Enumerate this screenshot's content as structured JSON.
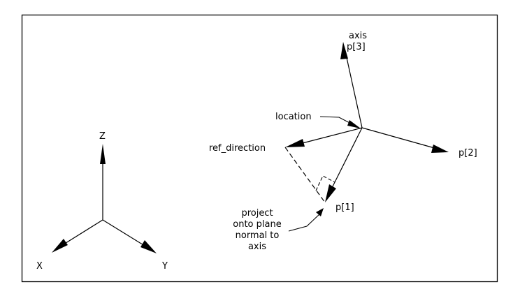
{
  "colors": {
    "ink": "#000000",
    "background": "#ffffff"
  },
  "global_axes": {
    "z_label": "Z",
    "x_label": "X",
    "y_label": "Y"
  },
  "placement": {
    "axis_label": "axis",
    "p3_label": "p[3]",
    "location_label": "location",
    "ref_direction_label": "ref_direction",
    "p2_label": "p[2]",
    "p1_label": "p[1]",
    "note_lines": [
      "project",
      "onto plane",
      "normal to",
      "axis"
    ]
  }
}
